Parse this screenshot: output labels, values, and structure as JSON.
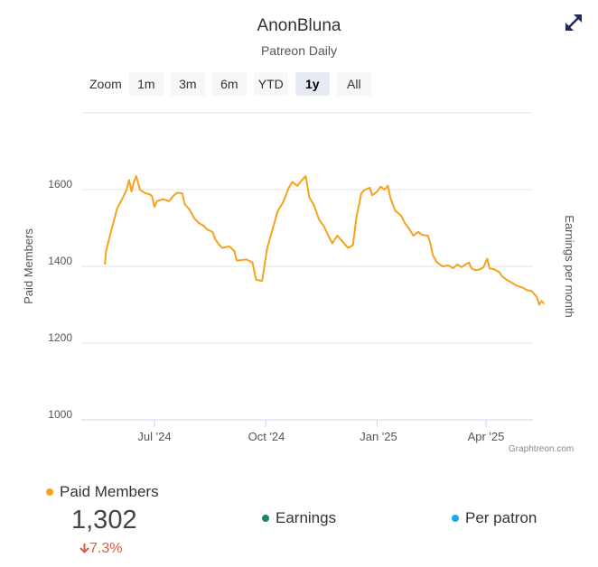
{
  "header": {
    "title": "AnonBluna",
    "subtitle": "Patreon Daily"
  },
  "zoom": {
    "label": "Zoom",
    "buttons": [
      {
        "label": "1m",
        "active": false
      },
      {
        "label": "3m",
        "active": false
      },
      {
        "label": "6m",
        "active": false
      },
      {
        "label": "YTD",
        "active": false
      },
      {
        "label": "1y",
        "active": true
      },
      {
        "label": "All",
        "active": false
      }
    ]
  },
  "credit": "Graphtreon.com",
  "icons": {
    "fullscreen": "expand-arrows-icon",
    "trend": "arrow-down-icon"
  },
  "colors": {
    "paid_members": "#f7a11c",
    "earnings": "#1a8a5a",
    "per_patron": "#1aa7e8",
    "decrease": "#e05a3a"
  },
  "chart_data": {
    "type": "line",
    "title": "AnonBluna",
    "subtitle": "Patreon Daily",
    "ylabel": "Paid Members",
    "ylabel_right": "Earnings per month",
    "ylim": [
      1000,
      1800
    ],
    "yticks": [
      1000,
      1200,
      1400,
      1600
    ],
    "xticks": [
      "Jul '24",
      "Oct '24",
      "Jan '25",
      "Apr '25"
    ],
    "grid": true,
    "series": [
      {
        "name": "Paid Members",
        "points": [
          [
            "2024-05-21",
            1405
          ],
          [
            "2024-05-22",
            1440
          ],
          [
            "2024-05-26",
            1490
          ],
          [
            "2024-05-31",
            1550
          ],
          [
            "2024-06-05",
            1580
          ],
          [
            "2024-06-08",
            1600
          ],
          [
            "2024-06-10",
            1625
          ],
          [
            "2024-06-12",
            1595
          ],
          [
            "2024-06-14",
            1620
          ],
          [
            "2024-06-16",
            1635
          ],
          [
            "2024-06-19",
            1600
          ],
          [
            "2024-06-21",
            1595
          ],
          [
            "2024-06-24",
            1590
          ],
          [
            "2024-06-27",
            1588
          ],
          [
            "2024-06-29",
            1583
          ],
          [
            "2024-07-01",
            1555
          ],
          [
            "2024-07-03",
            1570
          ],
          [
            "2024-07-08",
            1575
          ],
          [
            "2024-07-13",
            1570
          ],
          [
            "2024-07-17",
            1585
          ],
          [
            "2024-07-20",
            1592
          ],
          [
            "2024-07-24",
            1590
          ],
          [
            "2024-07-26",
            1562
          ],
          [
            "2024-07-30",
            1548
          ],
          [
            "2024-08-03",
            1525
          ],
          [
            "2024-08-07",
            1512
          ],
          [
            "2024-08-11",
            1505
          ],
          [
            "2024-08-14",
            1495
          ],
          [
            "2024-08-18",
            1490
          ],
          [
            "2024-08-20",
            1472
          ],
          [
            "2024-08-23",
            1458
          ],
          [
            "2024-08-26",
            1448
          ],
          [
            "2024-09-01",
            1452
          ],
          [
            "2024-09-05",
            1440
          ],
          [
            "2024-09-07",
            1415
          ],
          [
            "2024-09-15",
            1418
          ],
          [
            "2024-09-20",
            1410
          ],
          [
            "2024-09-23",
            1365
          ],
          [
            "2024-09-28",
            1362
          ],
          [
            "2024-10-02",
            1445
          ],
          [
            "2024-10-06",
            1490
          ],
          [
            "2024-10-11",
            1545
          ],
          [
            "2024-10-15",
            1565
          ],
          [
            "2024-10-20",
            1605
          ],
          [
            "2024-10-23",
            1620
          ],
          [
            "2024-10-27",
            1610
          ],
          [
            "2024-10-31",
            1625
          ],
          [
            "2024-11-03",
            1635
          ],
          [
            "2024-11-06",
            1580
          ],
          [
            "2024-11-10",
            1558
          ],
          [
            "2024-11-14",
            1522
          ],
          [
            "2024-11-18",
            1505
          ],
          [
            "2024-11-22",
            1478
          ],
          [
            "2024-11-25",
            1460
          ],
          [
            "2024-11-29",
            1480
          ],
          [
            "2024-12-02",
            1470
          ],
          [
            "2024-12-06",
            1455
          ],
          [
            "2024-12-08",
            1448
          ],
          [
            "2024-12-12",
            1455
          ],
          [
            "2024-12-15",
            1530
          ],
          [
            "2024-12-19",
            1590
          ],
          [
            "2024-12-22",
            1600
          ],
          [
            "2024-12-26",
            1605
          ],
          [
            "2024-12-28",
            1585
          ],
          [
            "2025-01-01",
            1595
          ],
          [
            "2025-01-04",
            1608
          ],
          [
            "2025-01-07",
            1600
          ],
          [
            "2025-01-10",
            1610
          ],
          [
            "2025-01-12",
            1578
          ],
          [
            "2025-01-16",
            1545
          ],
          [
            "2025-01-21",
            1532
          ],
          [
            "2025-01-24",
            1512
          ],
          [
            "2025-01-27",
            1500
          ],
          [
            "2025-01-31",
            1480
          ],
          [
            "2025-02-04",
            1490
          ],
          [
            "2025-02-07",
            1482
          ],
          [
            "2025-02-12",
            1480
          ],
          [
            "2025-02-14",
            1460
          ],
          [
            "2025-02-16",
            1430
          ],
          [
            "2025-02-19",
            1412
          ],
          [
            "2025-02-24",
            1400
          ],
          [
            "2025-03-01",
            1402
          ],
          [
            "2025-03-05",
            1395
          ],
          [
            "2025-03-08",
            1405
          ],
          [
            "2025-03-12",
            1398
          ],
          [
            "2025-03-15",
            1405
          ],
          [
            "2025-03-18",
            1410
          ],
          [
            "2025-03-20",
            1395
          ],
          [
            "2025-03-23",
            1390
          ],
          [
            "2025-03-27",
            1392
          ],
          [
            "2025-03-30",
            1398
          ],
          [
            "2025-04-02",
            1420
          ],
          [
            "2025-04-04",
            1395
          ],
          [
            "2025-04-08",
            1392
          ],
          [
            "2025-04-12",
            1385
          ],
          [
            "2025-04-14",
            1375
          ],
          [
            "2025-04-18",
            1365
          ],
          [
            "2025-04-21",
            1360
          ],
          [
            "2025-04-26",
            1350
          ],
          [
            "2025-05-01",
            1345
          ],
          [
            "2025-05-05",
            1338
          ],
          [
            "2025-05-09",
            1335
          ],
          [
            "2025-05-13",
            1320
          ],
          [
            "2025-05-15",
            1300
          ],
          [
            "2025-05-17",
            1310
          ],
          [
            "2025-05-19",
            1302
          ]
        ]
      }
    ]
  },
  "legend": {
    "paid_members": {
      "label": "Paid Members",
      "value": "1,302",
      "change": "7.3%"
    },
    "earnings": {
      "label": "Earnings"
    },
    "per_patron": {
      "label": "Per patron"
    }
  }
}
